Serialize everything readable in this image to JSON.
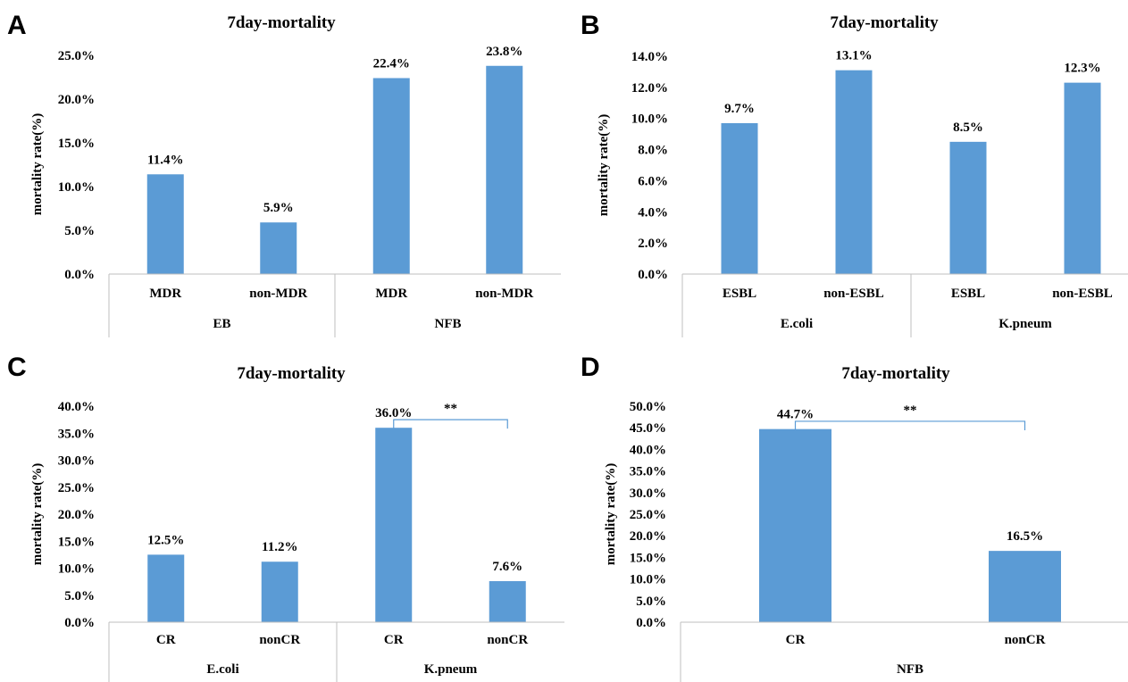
{
  "bar_color": "#5b9bd5",
  "bracket_color": "#5b9bd5",
  "axis_color": "#bfbfbf",
  "chart_data": [
    {
      "type": "bar",
      "panel": "A",
      "title": "7day-mortality",
      "ylabel": "mortality rate(%)",
      "ylim": [
        0,
        25
      ],
      "yticks": [
        0,
        5,
        10,
        15,
        20,
        25
      ],
      "ytick_labels": [
        "0.0%",
        "5.0%",
        "10.0%",
        "15.0%",
        "20.0%",
        "25.0%"
      ],
      "categories": [
        "MDR",
        "non-MDR",
        "MDR",
        "non-MDR"
      ],
      "groups": [
        {
          "label": "EB",
          "span": [
            0,
            1
          ]
        },
        {
          "label": "NFB",
          "span": [
            2,
            3
          ]
        }
      ],
      "values": [
        11.4,
        5.9,
        22.4,
        23.8
      ],
      "data_labels": [
        "11.4%",
        "5.9%",
        "22.4%",
        "23.8%"
      ],
      "significance": null
    },
    {
      "type": "bar",
      "panel": "B",
      "title": "7day-mortality",
      "ylabel": "mortality rate(%)",
      "ylim": [
        0,
        14
      ],
      "yticks": [
        0,
        2,
        4,
        6,
        8,
        10,
        12,
        14
      ],
      "ytick_labels": [
        "0.0%",
        "2.0%",
        "4.0%",
        "6.0%",
        "8.0%",
        "10.0%",
        "12.0%",
        "14.0%"
      ],
      "categories": [
        "ESBL",
        "non-ESBL",
        "ESBL",
        "non-ESBL"
      ],
      "groups": [
        {
          "label": "E.coli",
          "span": [
            0,
            1
          ]
        },
        {
          "label": "K.pneum",
          "span": [
            2,
            3
          ]
        }
      ],
      "values": [
        9.7,
        13.1,
        8.5,
        12.3
      ],
      "data_labels": [
        "9.7%",
        "13.1%",
        "8.5%",
        "12.3%"
      ],
      "significance": null
    },
    {
      "type": "bar",
      "panel": "C",
      "title": "7day-mortality",
      "ylabel": "mortality rate(%)",
      "ylim": [
        0,
        40
      ],
      "yticks": [
        0,
        5,
        10,
        15,
        20,
        25,
        30,
        35,
        40
      ],
      "ytick_labels": [
        "0.0%",
        "5.0%",
        "10.0%",
        "15.0%",
        "20.0%",
        "25.0%",
        "30.0%",
        "35.0%",
        "40.0%"
      ],
      "categories": [
        "CR",
        "nonCR",
        "CR",
        "nonCR"
      ],
      "groups": [
        {
          "label": "E.coli",
          "span": [
            0,
            1
          ]
        },
        {
          "label": "K.pneum",
          "span": [
            2,
            3
          ]
        }
      ],
      "values": [
        12.5,
        11.2,
        36.0,
        7.6
      ],
      "data_labels": [
        "12.5%",
        "11.2%",
        "36.0%",
        "7.6%"
      ],
      "significance": {
        "between": [
          2,
          3
        ],
        "label": "**",
        "level": 37.5
      }
    },
    {
      "type": "bar",
      "panel": "D",
      "title": "7day-mortality",
      "ylabel": "mortality rate(%)",
      "ylim": [
        0,
        50
      ],
      "yticks": [
        0,
        5,
        10,
        15,
        20,
        25,
        30,
        35,
        40,
        45,
        50
      ],
      "ytick_labels": [
        "0.0%",
        "5.0%",
        "10.0%",
        "15.0%",
        "20.0%",
        "25.0%",
        "30.0%",
        "35.0%",
        "40.0%",
        "45.0%",
        "50.0%"
      ],
      "categories": [
        "CR",
        "nonCR"
      ],
      "groups": [
        {
          "label": "NFB",
          "span": [
            0,
            1
          ]
        }
      ],
      "values": [
        44.7,
        16.5
      ],
      "data_labels": [
        "44.7%",
        "16.5%"
      ],
      "significance": {
        "between": [
          0,
          1
        ],
        "label": "**",
        "level": 46.5
      }
    }
  ]
}
